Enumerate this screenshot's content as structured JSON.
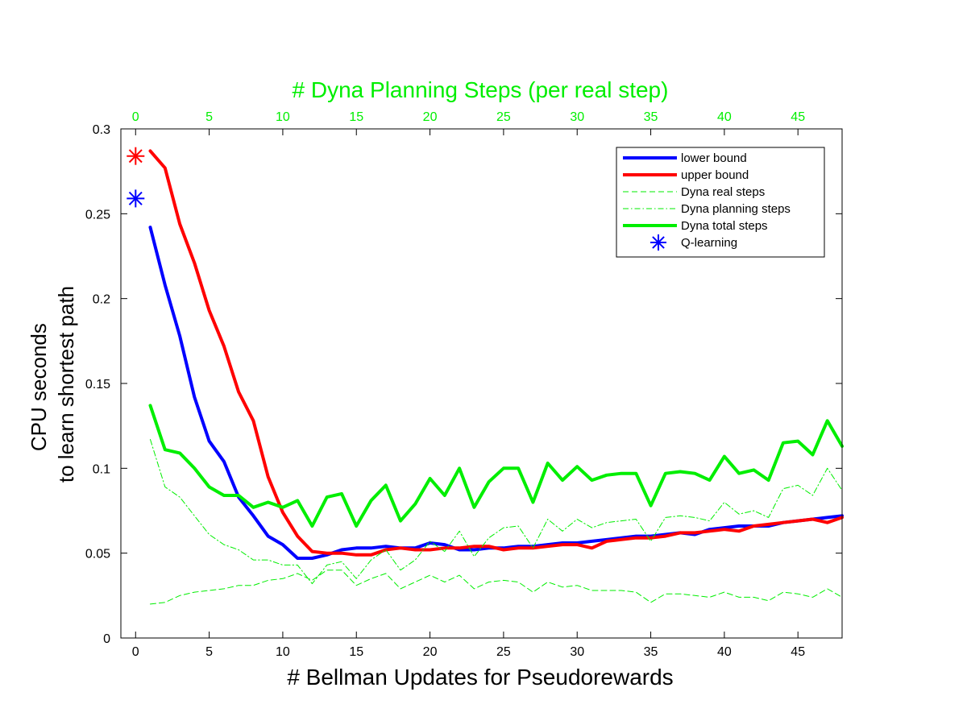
{
  "chart_data": {
    "type": "line",
    "title": "",
    "xlabel": "# Bellman Updates for Pseudorewards",
    "ylabel": [
      "CPU seconds",
      "to learn shortest path"
    ],
    "xlim": [
      -1,
      48
    ],
    "ylim": [
      0,
      0.3
    ],
    "xticks": [
      0,
      5,
      10,
      15,
      20,
      25,
      30,
      35,
      40,
      45
    ],
    "yticks": [
      0,
      0.05,
      0.1,
      0.15,
      0.2,
      0.25,
      0.3
    ],
    "ytick_labels": [
      "0",
      "0.05",
      "0.1",
      "0.15",
      "0.2",
      "0.25",
      "0.3"
    ],
    "top_axis": {
      "label": "# Dyna Planning Steps (per real step)",
      "ticks": [
        0,
        5,
        10,
        15,
        20,
        25,
        30,
        35,
        40,
        45
      ],
      "color": "#00ee00"
    },
    "grid": false,
    "legend_position": "top-right",
    "x": [
      1,
      2,
      3,
      4,
      5,
      6,
      7,
      8,
      9,
      10,
      11,
      12,
      13,
      14,
      15,
      16,
      17,
      18,
      19,
      20,
      21,
      22,
      23,
      24,
      25,
      26,
      27,
      28,
      29,
      30,
      31,
      32,
      33,
      34,
      35,
      36,
      37,
      38,
      39,
      40,
      41,
      42,
      43,
      44,
      45,
      46,
      47,
      48
    ],
    "series": [
      {
        "name": "lower bound",
        "color": "#0000ff",
        "style": "solid-thick",
        "values": [
          0.242,
          0.208,
          0.178,
          0.142,
          0.116,
          0.104,
          0.083,
          0.072,
          0.06,
          0.055,
          0.047,
          0.047,
          0.049,
          0.052,
          0.053,
          0.053,
          0.054,
          0.053,
          0.053,
          0.056,
          0.055,
          0.052,
          0.052,
          0.053,
          0.053,
          0.054,
          0.054,
          0.055,
          0.056,
          0.056,
          0.057,
          0.058,
          0.059,
          0.06,
          0.06,
          0.061,
          0.062,
          0.061,
          0.064,
          0.065,
          0.066,
          0.066,
          0.066,
          0.068,
          0.069,
          0.07,
          0.071,
          0.072
        ]
      },
      {
        "name": "upper bound",
        "color": "#ff0000",
        "style": "solid-thick",
        "values": [
          0.287,
          0.277,
          0.244,
          0.221,
          0.193,
          0.172,
          0.145,
          0.128,
          0.095,
          0.074,
          0.06,
          0.051,
          0.05,
          0.05,
          0.049,
          0.049,
          0.052,
          0.053,
          0.052,
          0.052,
          0.053,
          0.053,
          0.054,
          0.054,
          0.052,
          0.053,
          0.053,
          0.054,
          0.055,
          0.055,
          0.053,
          0.057,
          0.058,
          0.059,
          0.059,
          0.06,
          0.062,
          0.062,
          0.063,
          0.064,
          0.063,
          0.066,
          0.067,
          0.068,
          0.069,
          0.07,
          0.068,
          0.071
        ]
      },
      {
        "name": "Dyna real steps",
        "color": "#00ee00",
        "style": "dashed",
        "values": [
          0.02,
          0.021,
          0.025,
          0.027,
          0.028,
          0.029,
          0.031,
          0.031,
          0.034,
          0.035,
          0.038,
          0.034,
          0.04,
          0.04,
          0.031,
          0.035,
          0.038,
          0.029,
          0.033,
          0.037,
          0.033,
          0.037,
          0.029,
          0.033,
          0.034,
          0.033,
          0.027,
          0.033,
          0.03,
          0.031,
          0.028,
          0.028,
          0.028,
          0.027,
          0.021,
          0.026,
          0.026,
          0.025,
          0.024,
          0.027,
          0.024,
          0.024,
          0.022,
          0.027,
          0.026,
          0.024,
          0.029,
          0.024
        ]
      },
      {
        "name": "Dyna planning steps",
        "color": "#00ee00",
        "style": "dash-dot",
        "values": [
          0.117,
          0.089,
          0.083,
          0.072,
          0.061,
          0.055,
          0.052,
          0.046,
          0.046,
          0.043,
          0.043,
          0.032,
          0.043,
          0.045,
          0.035,
          0.046,
          0.052,
          0.04,
          0.046,
          0.057,
          0.051,
          0.063,
          0.048,
          0.059,
          0.065,
          0.066,
          0.053,
          0.07,
          0.063,
          0.07,
          0.065,
          0.068,
          0.069,
          0.07,
          0.057,
          0.071,
          0.072,
          0.071,
          0.069,
          0.08,
          0.073,
          0.075,
          0.071,
          0.088,
          0.09,
          0.084,
          0.1,
          0.087
        ]
      },
      {
        "name": "Dyna total steps",
        "color": "#00ee00",
        "style": "solid-thick",
        "values": [
          0.137,
          0.111,
          0.109,
          0.1,
          0.089,
          0.084,
          0.084,
          0.077,
          0.08,
          0.077,
          0.081,
          0.066,
          0.083,
          0.085,
          0.066,
          0.081,
          0.09,
          0.069,
          0.079,
          0.094,
          0.084,
          0.1,
          0.077,
          0.092,
          0.1,
          0.1,
          0.08,
          0.103,
          0.093,
          0.101,
          0.093,
          0.096,
          0.097,
          0.097,
          0.078,
          0.097,
          0.098,
          0.097,
          0.093,
          0.107,
          0.097,
          0.099,
          0.093,
          0.115,
          0.116,
          0.108,
          0.128,
          0.113
        ]
      }
    ],
    "markers": [
      {
        "name": "Q-learning",
        "color": "#0000ff",
        "x": 0,
        "y": 0.259
      },
      {
        "name": "",
        "color": "#ff0000",
        "x": 0,
        "y": 0.284
      }
    ],
    "legend": [
      {
        "label": "lower bound",
        "color": "#0000ff",
        "style": "solid-thick"
      },
      {
        "label": "upper bound",
        "color": "#ff0000",
        "style": "solid-thick"
      },
      {
        "label": "Dyna real steps",
        "color": "#00ee00",
        "style": "dashed"
      },
      {
        "label": "Dyna planning steps",
        "color": "#00ee00",
        "style": "dash-dot"
      },
      {
        "label": "Dyna total steps",
        "color": "#00ee00",
        "style": "solid-thick"
      },
      {
        "label": "Q-learning",
        "color": "#0000ff",
        "style": "star"
      }
    ]
  }
}
